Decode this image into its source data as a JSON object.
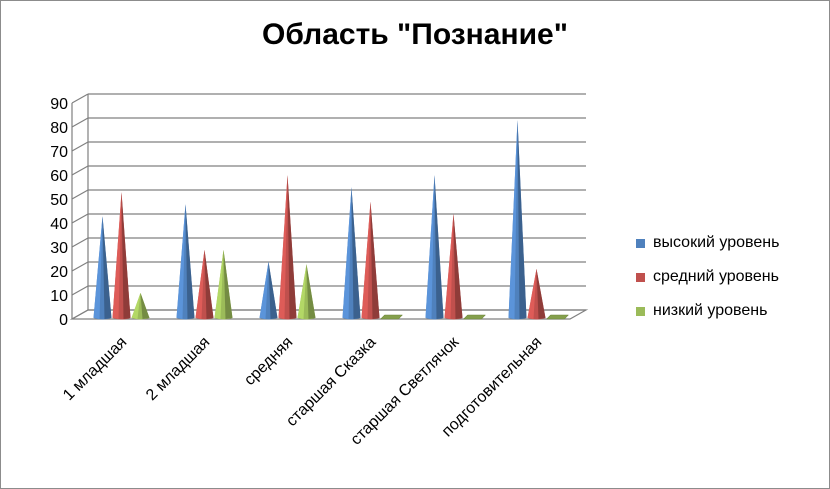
{
  "chart_data": {
    "type": "bar",
    "title": "Область \"Познание\"",
    "categories": [
      "1 младшая",
      "2 младшая",
      "средняя",
      "старшая Сказка",
      "старшая Светлячок",
      "подготовительная"
    ],
    "series": [
      {
        "name": "высокий уровень",
        "color": "#4f81bd",
        "values": [
          41,
          46,
          22,
          53,
          58,
          81
        ]
      },
      {
        "name": "средний уровень",
        "color": "#c0504d",
        "values": [
          51,
          27,
          58,
          47,
          42,
          19
        ]
      },
      {
        "name": "низкий уровень",
        "color": "#9bbb59",
        "values": [
          9,
          27,
          21,
          0,
          0,
          0
        ]
      }
    ],
    "ylim": [
      0,
      90
    ],
    "yticks": [
      0,
      10,
      20,
      30,
      40,
      50,
      60,
      70,
      80,
      90
    ],
    "xlabel": "",
    "ylabel": "",
    "grid": true,
    "legend_position": "right"
  }
}
